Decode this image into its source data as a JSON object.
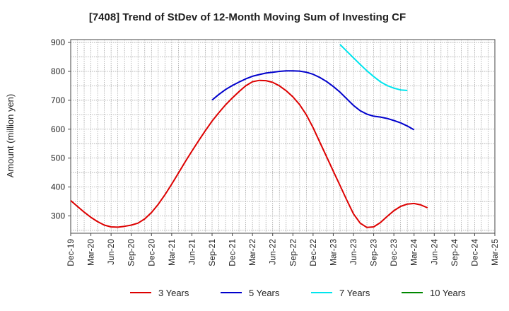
{
  "chart_data": {
    "type": "line",
    "title": "[7408]  Trend of StDev of 12-Month Moving Sum of Investing CF",
    "ylabel": "Amount (million yen)",
    "xlabel": "",
    "ylim": [
      240,
      910
    ],
    "yticks": [
      300,
      400,
      500,
      600,
      700,
      800,
      900
    ],
    "xlim": [
      "2019-12",
      "2025-03"
    ],
    "xticks": [
      "Dec-19",
      "Mar-20",
      "Jun-20",
      "Sep-20",
      "Dec-20",
      "Mar-21",
      "Jun-21",
      "Sep-21",
      "Dec-21",
      "Mar-22",
      "Jun-22",
      "Sep-22",
      "Dec-22",
      "Mar-23",
      "Jun-23",
      "Sep-23",
      "Dec-23",
      "Mar-24",
      "Jun-24",
      "Sep-24",
      "Dec-24",
      "Mar-25"
    ],
    "grid": true,
    "legend_position": "bottom",
    "series": [
      {
        "name": "3 Years",
        "color": "#dd0000",
        "points": [
          [
            "2019-12",
            353
          ],
          [
            "2020-01",
            333
          ],
          [
            "2020-02",
            313
          ],
          [
            "2020-03",
            295
          ],
          [
            "2020-04",
            280
          ],
          [
            "2020-05",
            268
          ],
          [
            "2020-06",
            262
          ],
          [
            "2020-07",
            261
          ],
          [
            "2020-08",
            264
          ],
          [
            "2020-09",
            268
          ],
          [
            "2020-10",
            275
          ],
          [
            "2020-11",
            290
          ],
          [
            "2020-12",
            312
          ],
          [
            "2021-01",
            340
          ],
          [
            "2021-02",
            373
          ],
          [
            "2021-03",
            410
          ],
          [
            "2021-04",
            448
          ],
          [
            "2021-05",
            487
          ],
          [
            "2021-06",
            524
          ],
          [
            "2021-07",
            560
          ],
          [
            "2021-08",
            595
          ],
          [
            "2021-09",
            628
          ],
          [
            "2021-10",
            657
          ],
          [
            "2021-11",
            684
          ],
          [
            "2021-12",
            708
          ],
          [
            "2022-01",
            730
          ],
          [
            "2022-02",
            750
          ],
          [
            "2022-03",
            764
          ],
          [
            "2022-04",
            769
          ],
          [
            "2022-05",
            768
          ],
          [
            "2022-06",
            762
          ],
          [
            "2022-07",
            750
          ],
          [
            "2022-08",
            733
          ],
          [
            "2022-09",
            712
          ],
          [
            "2022-10",
            685
          ],
          [
            "2022-11",
            650
          ],
          [
            "2022-12",
            605
          ],
          [
            "2023-01",
            555
          ],
          [
            "2023-02",
            505
          ],
          [
            "2023-03",
            455
          ],
          [
            "2023-04",
            405
          ],
          [
            "2023-05",
            355
          ],
          [
            "2023-06",
            307
          ],
          [
            "2023-07",
            275
          ],
          [
            "2023-08",
            260
          ],
          [
            "2023-09",
            262
          ],
          [
            "2023-10",
            277
          ],
          [
            "2023-11",
            298
          ],
          [
            "2023-12",
            318
          ],
          [
            "2024-01",
            333
          ],
          [
            "2024-02",
            341
          ],
          [
            "2024-03",
            343
          ],
          [
            "2024-04",
            338
          ],
          [
            "2024-05",
            328
          ]
        ]
      },
      {
        "name": "5 Years",
        "color": "#0000cc",
        "points": [
          [
            "2021-09",
            701
          ],
          [
            "2021-10",
            720
          ],
          [
            "2021-11",
            737
          ],
          [
            "2021-12",
            751
          ],
          [
            "2022-01",
            763
          ],
          [
            "2022-02",
            774
          ],
          [
            "2022-03",
            783
          ],
          [
            "2022-04",
            789
          ],
          [
            "2022-05",
            794
          ],
          [
            "2022-06",
            797
          ],
          [
            "2022-07",
            800
          ],
          [
            "2022-08",
            802
          ],
          [
            "2022-09",
            802
          ],
          [
            "2022-10",
            801
          ],
          [
            "2022-11",
            797
          ],
          [
            "2022-12",
            790
          ],
          [
            "2023-01",
            779
          ],
          [
            "2023-02",
            765
          ],
          [
            "2023-03",
            748
          ],
          [
            "2023-04",
            728
          ],
          [
            "2023-05",
            705
          ],
          [
            "2023-06",
            682
          ],
          [
            "2023-07",
            664
          ],
          [
            "2023-08",
            652
          ],
          [
            "2023-09",
            645
          ],
          [
            "2023-10",
            642
          ],
          [
            "2023-11",
            637
          ],
          [
            "2023-12",
            630
          ],
          [
            "2024-01",
            622
          ],
          [
            "2024-02",
            611
          ],
          [
            "2024-03",
            598
          ]
        ]
      },
      {
        "name": "7 Years",
        "color": "#00e5ee",
        "points": [
          [
            "2023-04",
            893
          ],
          [
            "2023-05",
            870
          ],
          [
            "2023-06",
            847
          ],
          [
            "2023-07",
            824
          ],
          [
            "2023-08",
            802
          ],
          [
            "2023-09",
            782
          ],
          [
            "2023-10",
            764
          ],
          [
            "2023-11",
            751
          ],
          [
            "2023-12",
            742
          ],
          [
            "2024-01",
            736
          ],
          [
            "2024-02",
            734
          ]
        ]
      },
      {
        "name": "10 Years",
        "color": "#008800",
        "points": []
      }
    ]
  }
}
